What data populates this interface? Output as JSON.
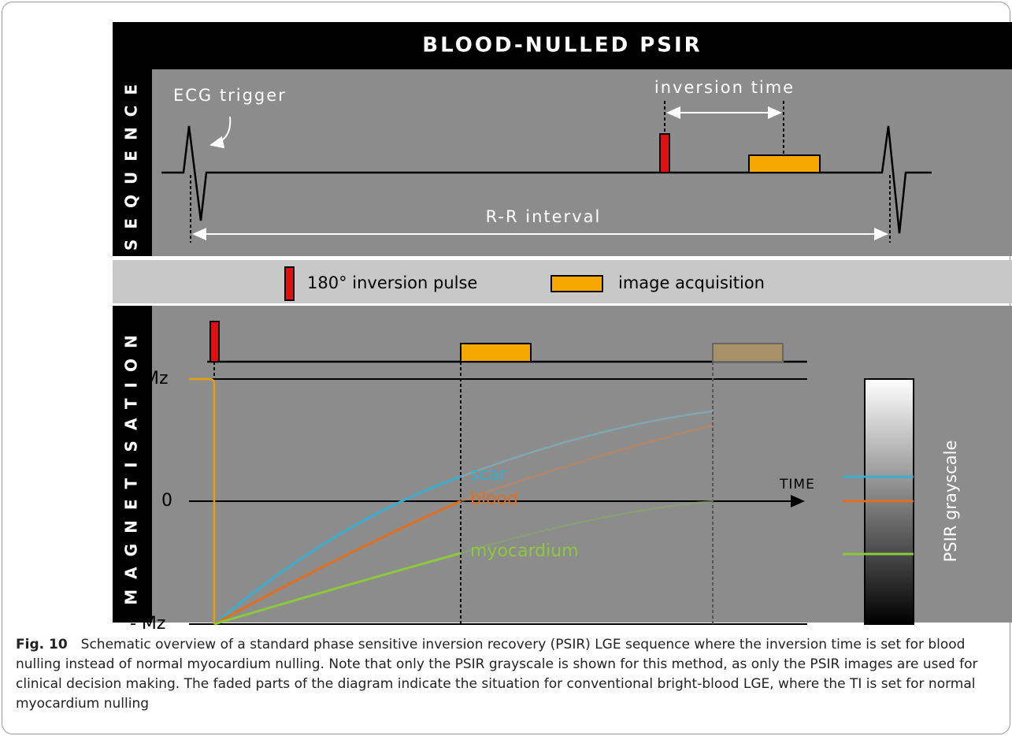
{
  "title": "BLOOD-NULLED PSIR",
  "sequence": {
    "label": "SEQUENCE",
    "ecg_trigger": "ECG trigger",
    "inversion_time": "inversion time",
    "rr_interval": "R-R interval"
  },
  "legend": {
    "inversion_pulse": "180° inversion pulse",
    "image_acquisition": "image acquisition"
  },
  "magnetisation": {
    "label": "MAGNETISATION",
    "axis_labels": [
      "Mz",
      "0",
      "- Mz"
    ],
    "time_label": "TIME",
    "curves": [
      "scar",
      "blood",
      "myocardium"
    ]
  },
  "grayscale": {
    "label": "PSIR grayscale"
  },
  "caption": {
    "figure": "Fig. 10",
    "text": "Schematic overview of a standard phase sensitive inversion recovery (PSIR) LGE sequence where the inversion time is set for blood nulling instead of normal myocardium nulling. Note that only the PSIR grayscale is shown for this method, as only the PSIR images are used for clinical decision making. The faded parts of the diagram indicate the situation for conventional bright-blood LGE, where the TI is set for normal myocardium nulling"
  }
}
